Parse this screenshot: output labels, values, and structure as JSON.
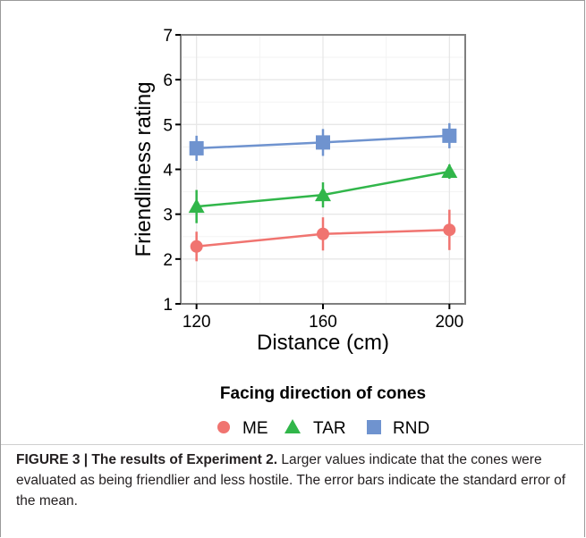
{
  "chart_data": {
    "type": "line",
    "x": [
      120,
      160,
      200
    ],
    "xlabel": "Distance (cm)",
    "ylabel": "Friendliness rating",
    "xlim": [
      115,
      205
    ],
    "ylim": [
      1,
      7
    ],
    "x_ticks": [
      "120",
      "160",
      "200"
    ],
    "y_ticks": [
      "1",
      "2",
      "3",
      "4",
      "5",
      "6",
      "7"
    ],
    "grid": true,
    "legend_title": "Facing direction of cones",
    "legend_position": "bottom",
    "series": [
      {
        "name": "ME",
        "color": "#F07470",
        "marker": "circle",
        "values": [
          2.28,
          2.56,
          2.65
        ],
        "error": [
          0.33,
          0.37,
          0.45
        ]
      },
      {
        "name": "TAR",
        "color": "#31B64A",
        "marker": "triangle",
        "values": [
          3.17,
          3.43,
          3.95
        ],
        "error": [
          0.37,
          0.28,
          0.16
        ]
      },
      {
        "name": "RND",
        "color": "#6F93CF",
        "marker": "square",
        "values": [
          4.47,
          4.6,
          4.75
        ],
        "error": [
          0.28,
          0.3,
          0.28
        ]
      }
    ]
  },
  "caption": {
    "label": "FIGURE 3 | The results of Experiment 2.",
    "text": " Larger values indicate that the cones were evaluated as being friendlier and less hostile. The error bars indicate the standard error of the mean."
  }
}
